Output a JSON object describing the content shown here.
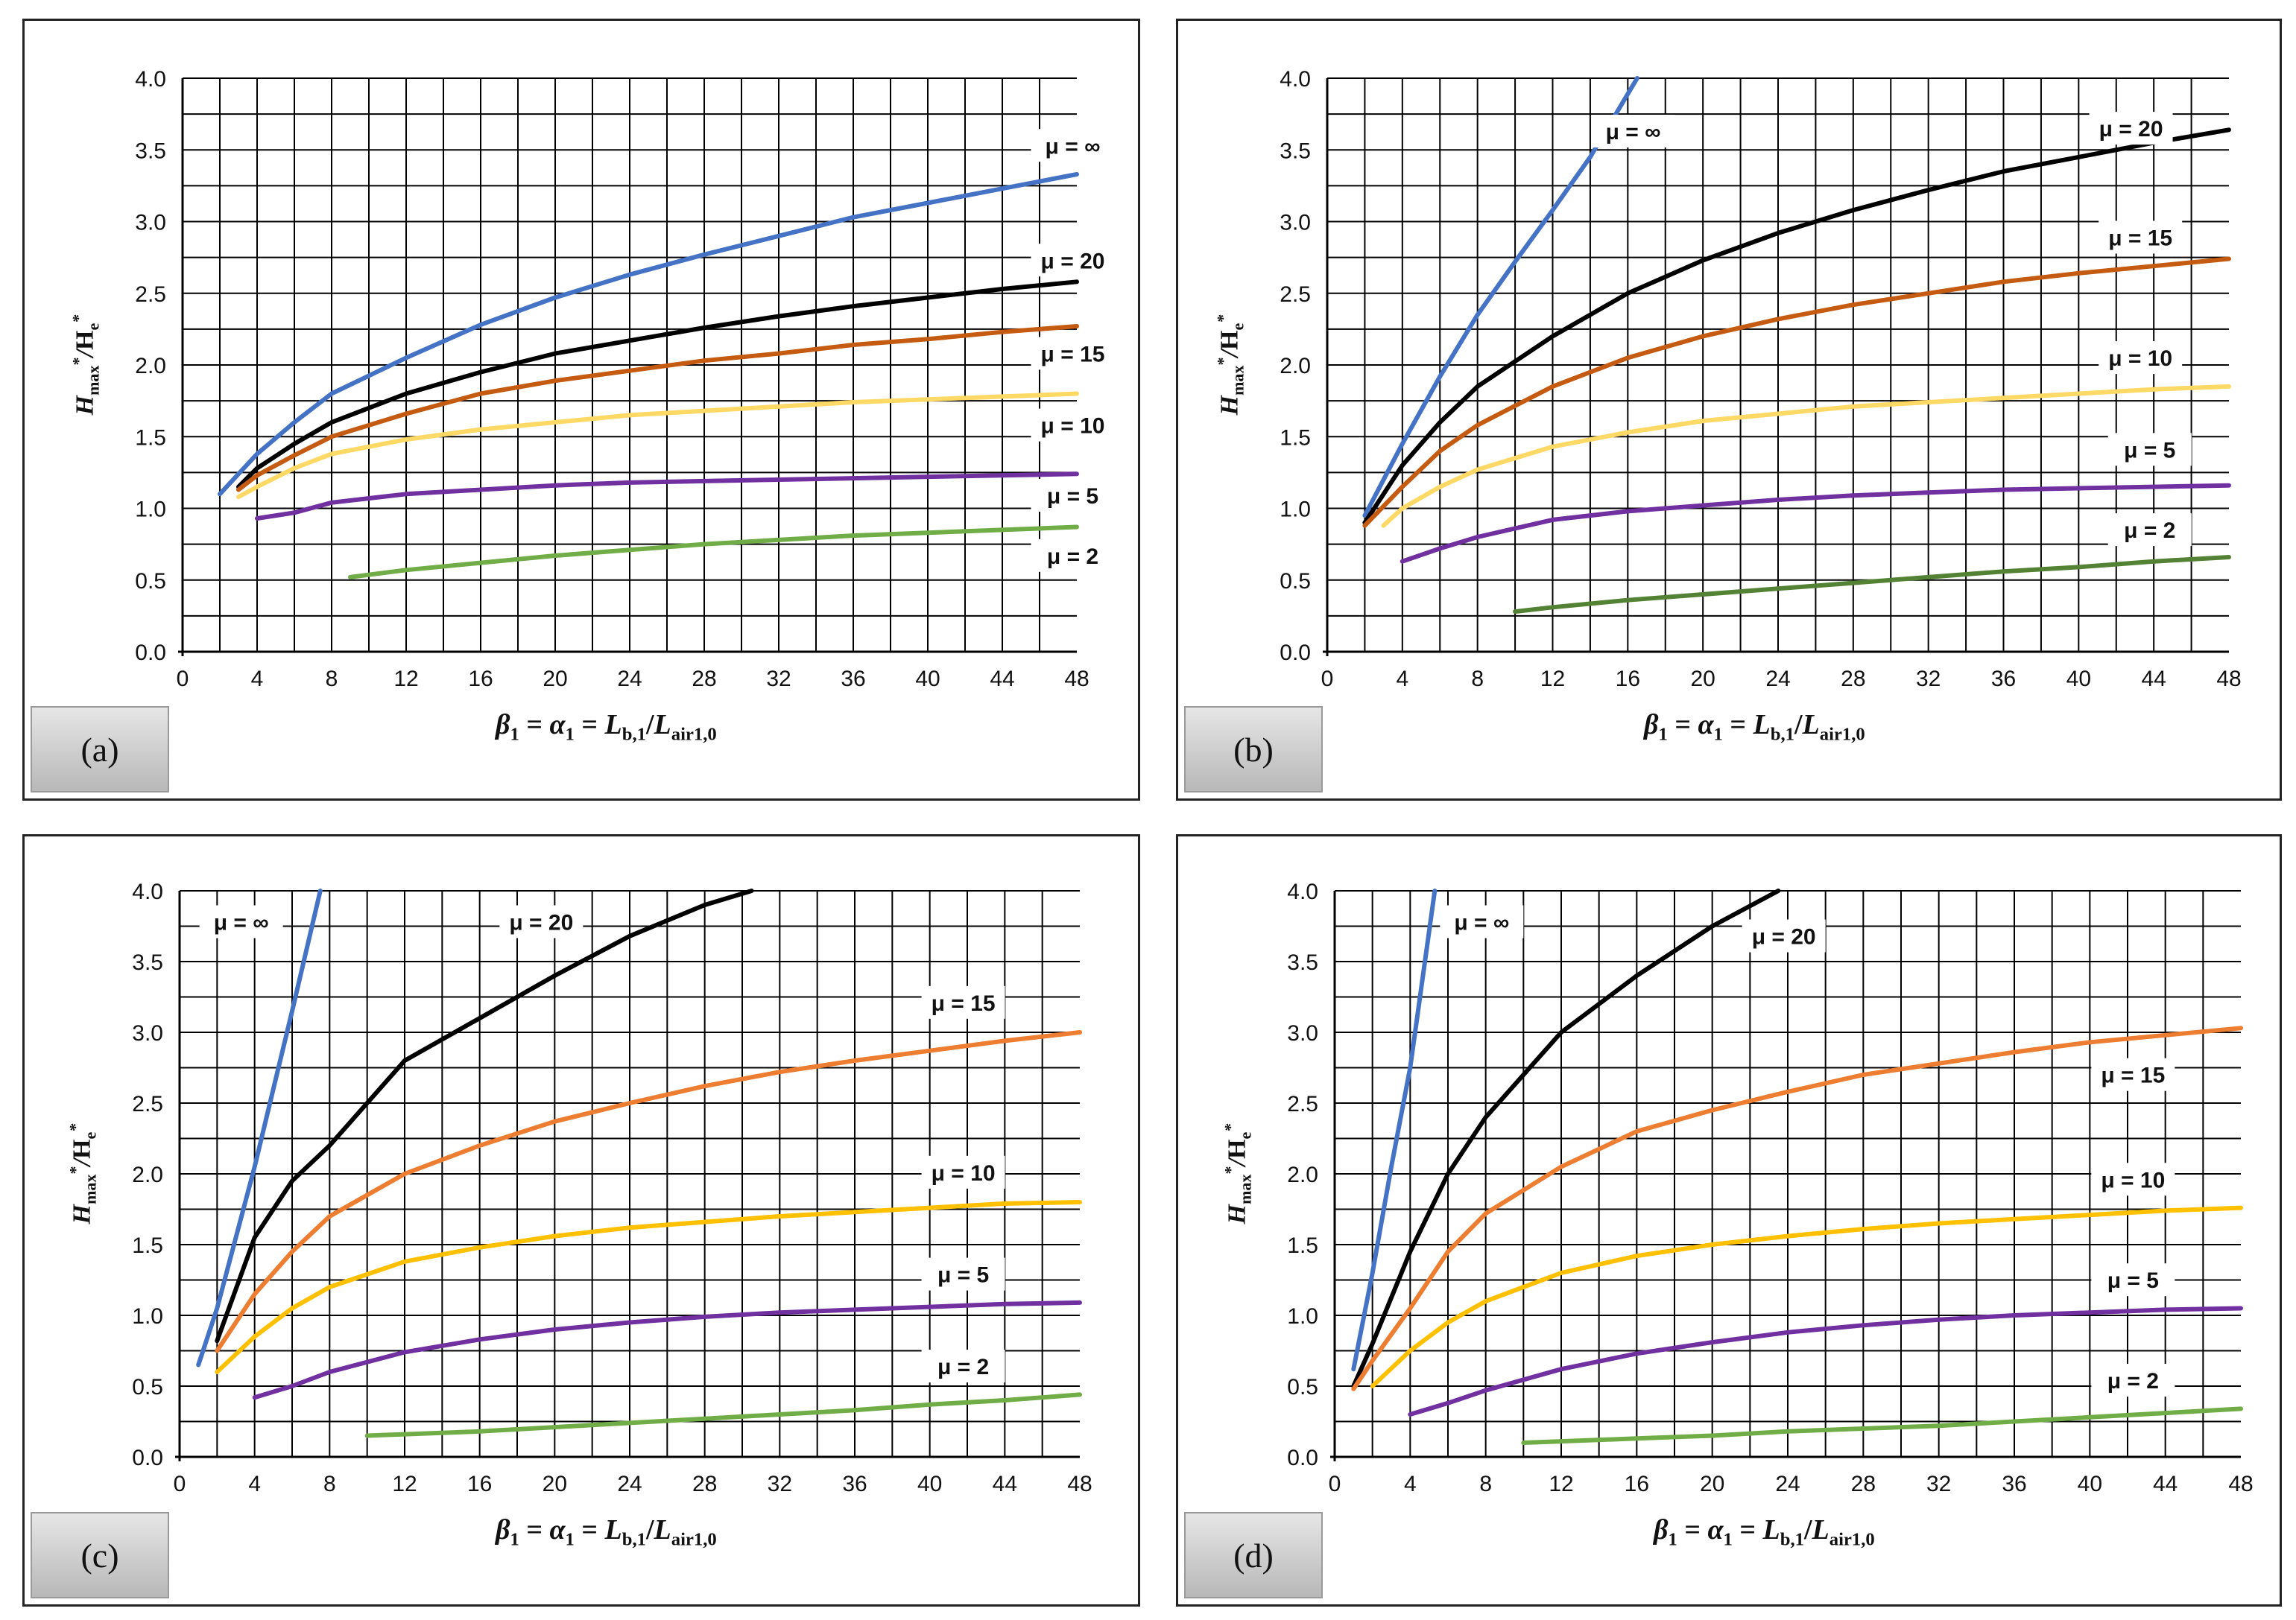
{
  "axis_caption": {
    "x_parts": [
      "β",
      "1",
      " = ",
      "α",
      "1",
      " = ",
      "L",
      "b,1",
      "/",
      "L",
      "air1,0"
    ],
    "y_parts": [
      "H",
      "max",
      "*",
      "/",
      "H",
      "e",
      "*"
    ]
  },
  "colors": {
    "inf": "#4472c4",
    "mu20": "#000000",
    "mu15": "#c55a11",
    "mu10": "#ffd966",
    "mu5": "#7030a0",
    "mu2": "#70ad47"
  },
  "chart_data": [
    {
      "id": "a",
      "type": "line",
      "label": "(a)",
      "title": "",
      "xlabel": "β1 = α1 = Lb,1/Lair1,0",
      "ylabel": "Hmax*/He*",
      "xlim": [
        0,
        48
      ],
      "ylim": [
        0,
        4
      ],
      "x_ticks": [
        0,
        4,
        8,
        12,
        16,
        20,
        24,
        28,
        32,
        36,
        40,
        44,
        48
      ],
      "y_ticks": [
        "0.0",
        "0.5",
        "1.0",
        "1.5",
        "2.0",
        "2.5",
        "3.0",
        "3.5",
        "4.0"
      ],
      "grid": true,
      "series": [
        {
          "name": "μ = ∞",
          "color": "#4472c4",
          "x": [
            2,
            4,
            6,
            8,
            12,
            16,
            20,
            24,
            28,
            32,
            36,
            40,
            44,
            48
          ],
          "y": [
            1.1,
            1.38,
            1.6,
            1.8,
            2.05,
            2.28,
            2.47,
            2.63,
            2.77,
            2.9,
            3.03,
            3.13,
            3.23,
            3.33
          ],
          "label_pos": [
            48.5,
            3.5
          ]
        },
        {
          "name": "μ = 20",
          "color": "#000000",
          "x": [
            3,
            4,
            6,
            8,
            12,
            16,
            20,
            24,
            28,
            32,
            36,
            40,
            44,
            48
          ],
          "y": [
            1.15,
            1.28,
            1.45,
            1.6,
            1.8,
            1.95,
            2.08,
            2.17,
            2.26,
            2.34,
            2.41,
            2.47,
            2.53,
            2.58
          ],
          "label_pos": [
            48.5,
            2.7
          ]
        },
        {
          "name": "μ = 15",
          "color": "#c55a11",
          "x": [
            3,
            4,
            6,
            8,
            12,
            16,
            20,
            24,
            28,
            32,
            36,
            40,
            44,
            48
          ],
          "y": [
            1.13,
            1.23,
            1.37,
            1.5,
            1.66,
            1.8,
            1.89,
            1.96,
            2.03,
            2.08,
            2.14,
            2.18,
            2.23,
            2.27
          ],
          "label_pos": [
            48.5,
            2.05
          ]
        },
        {
          "name": "μ = 10",
          "color": "#ffd966",
          "x": [
            3,
            4,
            6,
            8,
            12,
            16,
            20,
            24,
            28,
            32,
            36,
            40,
            44,
            48
          ],
          "y": [
            1.08,
            1.15,
            1.28,
            1.38,
            1.48,
            1.55,
            1.6,
            1.65,
            1.68,
            1.71,
            1.74,
            1.76,
            1.78,
            1.8
          ],
          "label_pos": [
            48.5,
            1.55
          ]
        },
        {
          "name": "μ = 5",
          "color": "#7030a0",
          "x": [
            4,
            6,
            8,
            12,
            16,
            20,
            24,
            28,
            32,
            36,
            40,
            44,
            48
          ],
          "y": [
            0.93,
            0.97,
            1.04,
            1.1,
            1.13,
            1.16,
            1.18,
            1.19,
            1.2,
            1.21,
            1.22,
            1.23,
            1.24
          ],
          "label_pos": [
            48.5,
            1.06
          ]
        },
        {
          "name": "μ = 2",
          "color": "#70ad47",
          "x": [
            9,
            12,
            16,
            20,
            24,
            28,
            32,
            36,
            40,
            44,
            48
          ],
          "y": [
            0.52,
            0.57,
            0.62,
            0.67,
            0.71,
            0.75,
            0.78,
            0.81,
            0.83,
            0.85,
            0.87
          ],
          "label_pos": [
            48.5,
            0.64
          ]
        }
      ]
    },
    {
      "id": "b",
      "type": "line",
      "label": "(b)",
      "title": "",
      "xlabel": "β1 = α1 = Lb,1/Lair1,0",
      "ylabel": "Hmax*/He*",
      "xlim": [
        0,
        48
      ],
      "ylim": [
        0,
        4
      ],
      "x_ticks": [
        0,
        4,
        8,
        12,
        16,
        20,
        24,
        28,
        32,
        36,
        40,
        44,
        48
      ],
      "y_ticks": [
        "0.0",
        "0.5",
        "1.0",
        "1.5",
        "2.0",
        "2.5",
        "3.0",
        "3.5",
        "4.0"
      ],
      "grid": true,
      "series": [
        {
          "name": "μ = ∞",
          "color": "#4472c4",
          "x": [
            2,
            4,
            6,
            8,
            10,
            12,
            14,
            16.5
          ],
          "y": [
            0.95,
            1.45,
            1.92,
            2.35,
            2.72,
            3.08,
            3.45,
            4.0
          ],
          "label_pos": [
            17,
            3.6
          ]
        },
        {
          "name": "μ = 20",
          "color": "#000000",
          "x": [
            2,
            4,
            6,
            8,
            12,
            16,
            20,
            24,
            28,
            32,
            36,
            40,
            44,
            48
          ],
          "y": [
            0.9,
            1.3,
            1.6,
            1.85,
            2.2,
            2.5,
            2.73,
            2.92,
            3.08,
            3.22,
            3.35,
            3.45,
            3.55,
            3.64
          ],
          "label_pos": [
            43.5,
            3.62
          ]
        },
        {
          "name": "μ = 15",
          "color": "#c55a11",
          "x": [
            2,
            4,
            6,
            8,
            12,
            16,
            20,
            24,
            28,
            32,
            36,
            40,
            44,
            48
          ],
          "y": [
            0.88,
            1.15,
            1.4,
            1.58,
            1.85,
            2.05,
            2.2,
            2.32,
            2.42,
            2.5,
            2.58,
            2.64,
            2.69,
            2.74
          ],
          "label_pos": [
            44,
            2.86
          ]
        },
        {
          "name": "μ = 10",
          "color": "#ffd966",
          "x": [
            3,
            4,
            6,
            8,
            12,
            16,
            20,
            24,
            28,
            32,
            36,
            40,
            44,
            48
          ],
          "y": [
            0.88,
            1.0,
            1.15,
            1.27,
            1.43,
            1.53,
            1.61,
            1.66,
            1.71,
            1.74,
            1.77,
            1.8,
            1.83,
            1.85
          ],
          "label_pos": [
            44,
            2.02
          ]
        },
        {
          "name": "μ = 5",
          "color": "#7030a0",
          "x": [
            4,
            6,
            8,
            12,
            16,
            20,
            24,
            28,
            32,
            36,
            40,
            44,
            48
          ],
          "y": [
            0.63,
            0.72,
            0.8,
            0.92,
            0.98,
            1.02,
            1.06,
            1.09,
            1.11,
            1.13,
            1.14,
            1.15,
            1.16
          ],
          "label_pos": [
            44.5,
            1.38
          ]
        },
        {
          "name": "μ = 2",
          "color": "#548235",
          "x": [
            10,
            12,
            16,
            20,
            24,
            28,
            32,
            36,
            40,
            44,
            48
          ],
          "y": [
            0.28,
            0.31,
            0.36,
            0.4,
            0.44,
            0.48,
            0.52,
            0.56,
            0.59,
            0.63,
            0.66
          ],
          "label_pos": [
            44.5,
            0.82
          ]
        }
      ]
    },
    {
      "id": "c",
      "type": "line",
      "label": "(c)",
      "title": "",
      "xlabel": "β1 = α1 = Lb,1/Lair1,0",
      "ylabel": "Hmax*/He*",
      "xlim": [
        0,
        48
      ],
      "ylim": [
        0,
        4
      ],
      "x_ticks": [
        0,
        4,
        8,
        12,
        16,
        20,
        24,
        28,
        32,
        36,
        40,
        44,
        48
      ],
      "y_ticks": [
        "0.0",
        "0.5",
        "1.0",
        "1.5",
        "2.0",
        "2.5",
        "3.0",
        "3.5",
        "4.0"
      ],
      "grid": true,
      "series": [
        {
          "name": "μ = ∞",
          "color": "#4472c4",
          "x": [
            1,
            2,
            3,
            4,
            5,
            6,
            7.5
          ],
          "y": [
            0.65,
            1.05,
            1.55,
            2.05,
            2.6,
            3.15,
            4.0
          ],
          "label_pos": [
            4,
            3.75
          ]
        },
        {
          "name": "μ = 20",
          "color": "#000000",
          "x": [
            2,
            4,
            6,
            8,
            12,
            16,
            20,
            24,
            28,
            30.5
          ],
          "y": [
            0.82,
            1.55,
            1.95,
            2.2,
            2.8,
            3.1,
            3.4,
            3.68,
            3.9,
            4.0
          ],
          "label_pos": [
            20,
            3.75
          ]
        },
        {
          "name": "μ = 15",
          "color": "#ed7d31",
          "x": [
            2,
            4,
            6,
            8,
            12,
            16,
            20,
            24,
            28,
            32,
            36,
            40,
            44,
            48
          ],
          "y": [
            0.75,
            1.15,
            1.45,
            1.7,
            2.0,
            2.2,
            2.37,
            2.5,
            2.62,
            2.72,
            2.8,
            2.87,
            2.94,
            3.0
          ],
          "label_pos": [
            42.5,
            3.18
          ]
        },
        {
          "name": "μ = 10",
          "color": "#ffc000",
          "x": [
            2,
            4,
            6,
            8,
            12,
            16,
            20,
            24,
            28,
            32,
            36,
            40,
            44,
            48
          ],
          "y": [
            0.6,
            0.85,
            1.05,
            1.2,
            1.38,
            1.48,
            1.56,
            1.62,
            1.66,
            1.7,
            1.73,
            1.76,
            1.79,
            1.8
          ],
          "label_pos": [
            42.5,
            1.98
          ]
        },
        {
          "name": "μ = 5",
          "color": "#7030a0",
          "x": [
            4,
            6,
            8,
            12,
            16,
            20,
            24,
            28,
            32,
            36,
            40,
            44,
            48
          ],
          "y": [
            0.42,
            0.5,
            0.6,
            0.74,
            0.83,
            0.9,
            0.95,
            0.99,
            1.02,
            1.04,
            1.06,
            1.08,
            1.09
          ],
          "label_pos": [
            42.5,
            1.26
          ]
        },
        {
          "name": "μ = 2",
          "color": "#70ad47",
          "x": [
            10,
            12,
            16,
            20,
            24,
            28,
            32,
            36,
            40,
            44,
            48
          ],
          "y": [
            0.15,
            0.16,
            0.18,
            0.21,
            0.24,
            0.27,
            0.3,
            0.33,
            0.37,
            0.4,
            0.44
          ],
          "label_pos": [
            42.5,
            0.61
          ]
        }
      ]
    },
    {
      "id": "d",
      "type": "line",
      "label": "(d)",
      "title": "",
      "xlabel": "β1 = α1 = Lb,1/Lair1,0",
      "ylabel": "Hmax*/He*",
      "xlim": [
        0,
        48
      ],
      "ylim": [
        0,
        4
      ],
      "x_ticks": [
        0,
        4,
        8,
        12,
        16,
        20,
        24,
        28,
        32,
        36,
        40,
        44,
        48
      ],
      "y_ticks": [
        "0.0",
        "0.5",
        "1.0",
        "1.5",
        "2.0",
        "2.5",
        "3.0",
        "3.5",
        "4.0"
      ],
      "grid": true,
      "series": [
        {
          "name": "μ = ∞",
          "color": "#4472c4",
          "x": [
            1,
            2,
            3,
            4,
            5.3
          ],
          "y": [
            0.62,
            1.3,
            2.05,
            2.75,
            4.0
          ],
          "label_pos": [
            8.5,
            3.75
          ]
        },
        {
          "name": "μ = 20",
          "color": "#000000",
          "x": [
            1,
            2,
            4,
            6,
            8,
            12,
            16,
            20,
            23.5
          ],
          "y": [
            0.5,
            0.8,
            1.45,
            2.0,
            2.4,
            3.0,
            3.4,
            3.75,
            4.0
          ],
          "label_pos": [
            24.5,
            3.65
          ]
        },
        {
          "name": "μ = 15",
          "color": "#ed7d31",
          "x": [
            1,
            2,
            4,
            6,
            8,
            12,
            16,
            20,
            24,
            28,
            32,
            36,
            40,
            44,
            48
          ],
          "y": [
            0.48,
            0.68,
            1.05,
            1.45,
            1.72,
            2.05,
            2.3,
            2.45,
            2.58,
            2.7,
            2.78,
            2.86,
            2.93,
            2.98,
            3.03
          ],
          "label_pos": [
            43,
            2.67
          ]
        },
        {
          "name": "μ = 10",
          "color": "#ffc000",
          "x": [
            2,
            4,
            6,
            8,
            12,
            16,
            20,
            24,
            28,
            32,
            36,
            40,
            44,
            48
          ],
          "y": [
            0.5,
            0.75,
            0.95,
            1.1,
            1.3,
            1.42,
            1.5,
            1.56,
            1.61,
            1.65,
            1.68,
            1.71,
            1.74,
            1.76
          ],
          "label_pos": [
            43,
            1.93
          ]
        },
        {
          "name": "μ = 5",
          "color": "#7030a0",
          "x": [
            4,
            6,
            8,
            12,
            16,
            20,
            24,
            28,
            32,
            36,
            40,
            44,
            48
          ],
          "y": [
            0.3,
            0.38,
            0.47,
            0.62,
            0.73,
            0.81,
            0.88,
            0.93,
            0.97,
            1.0,
            1.02,
            1.04,
            1.05
          ],
          "label_pos": [
            43,
            1.22
          ]
        },
        {
          "name": "μ = 2",
          "color": "#70ad47",
          "x": [
            10,
            12,
            16,
            20,
            24,
            28,
            32,
            36,
            40,
            44,
            48
          ],
          "y": [
            0.1,
            0.11,
            0.13,
            0.15,
            0.18,
            0.2,
            0.22,
            0.25,
            0.28,
            0.31,
            0.34
          ],
          "label_pos": [
            43,
            0.51
          ]
        }
      ]
    }
  ]
}
